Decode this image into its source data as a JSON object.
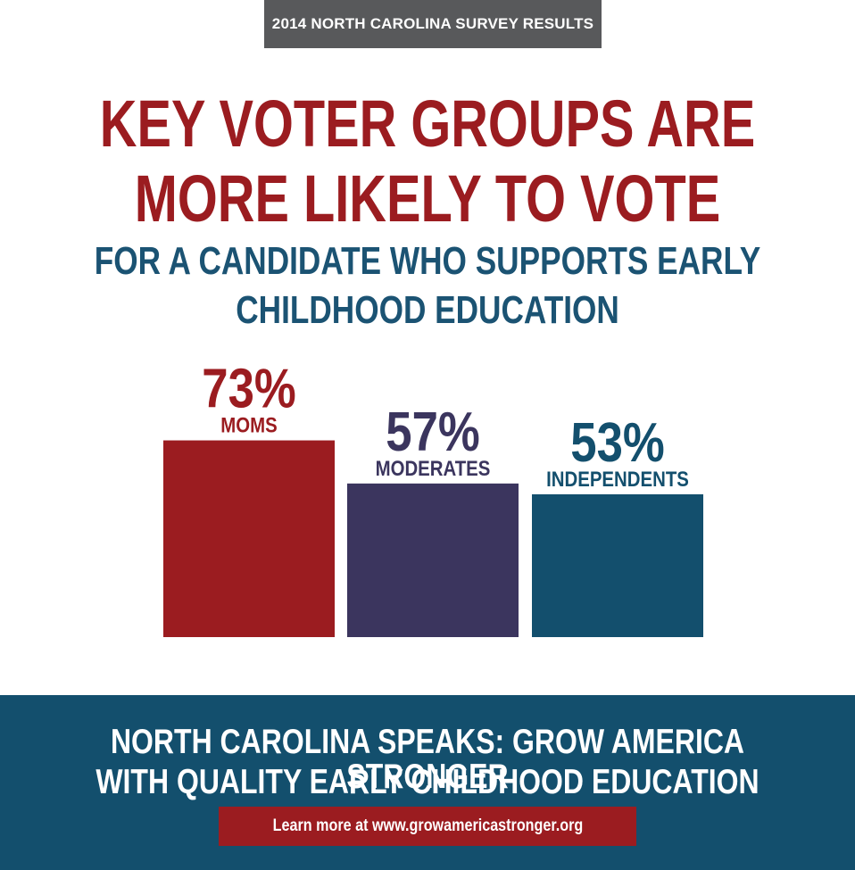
{
  "header": {
    "tag": "2014 NORTH CAROLINA SURVEY RESULTS",
    "headline_line1": "KEY VOTER GROUPS ARE",
    "headline_line2": "MORE LIKELY TO VOTE",
    "subhead_line1": "FOR A CANDIDATE WHO SUPPORTS EARLY",
    "subhead_line2": "CHILDHOOD EDUCATION"
  },
  "chart_data": {
    "type": "bar",
    "title": "",
    "xlabel": "",
    "ylabel": "",
    "categories": [
      "MOMS",
      "MODERATES",
      "INDEPENDENTS"
    ],
    "values": [
      73,
      57,
      53
    ],
    "value_labels": [
      "73%",
      "57%",
      "53%"
    ],
    "unit": "%",
    "ylim": [
      0,
      100
    ],
    "colors": [
      "#9b1c20",
      "#3b355e",
      "#134f6d"
    ],
    "grid": false
  },
  "footer": {
    "line1": "NORTH CAROLINA SPEAKS: GROW AMERICA STRONGER",
    "line2": "WITH QUALITY EARLY CHILDHOOD EDUCATION",
    "cta": "Learn more at www.growamericastronger.org"
  }
}
